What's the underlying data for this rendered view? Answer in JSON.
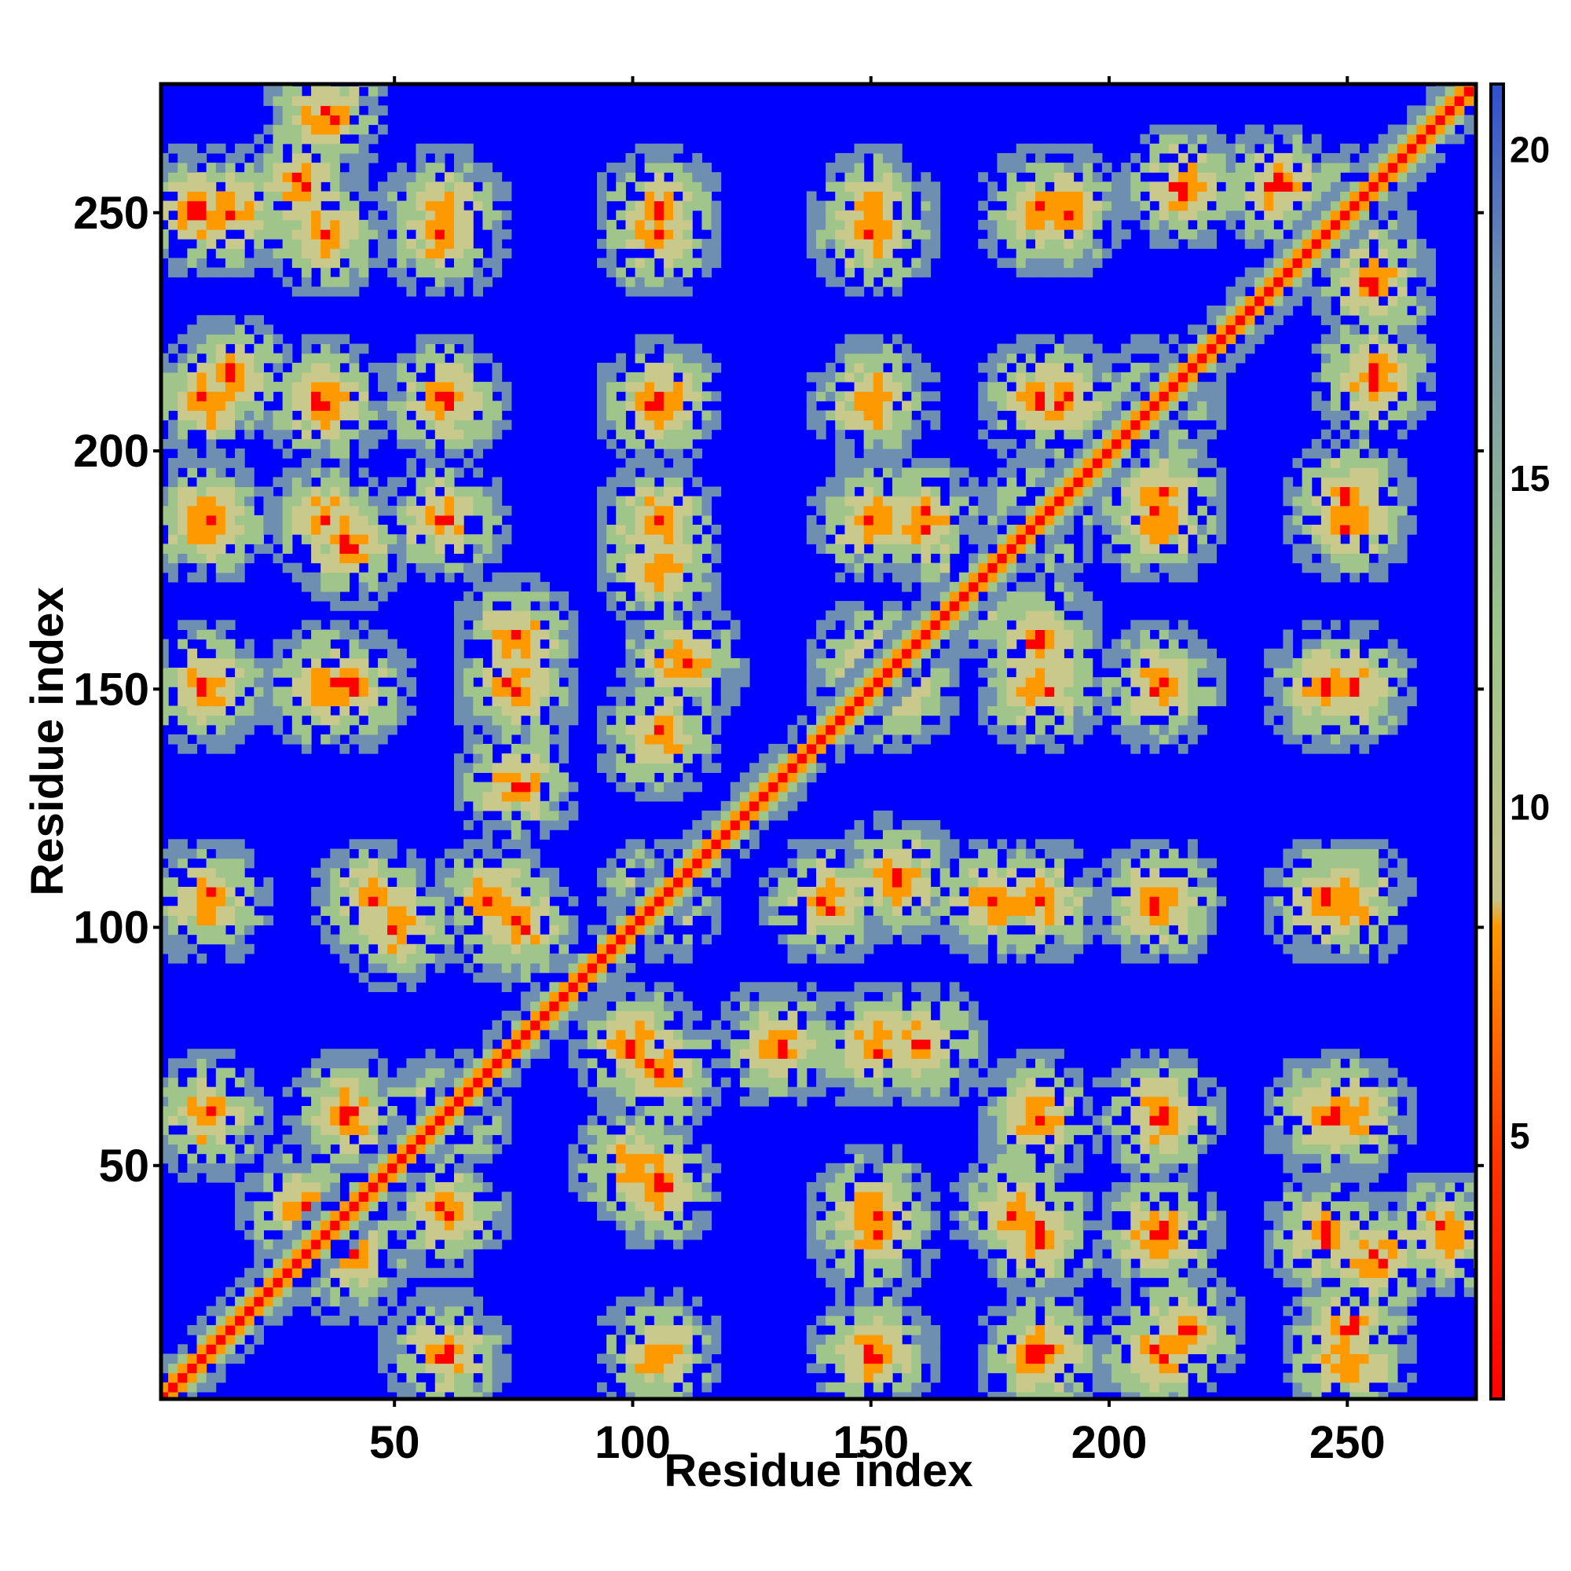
{
  "chart_data": {
    "type": "heatmap",
    "title": "",
    "xlabel": "Residue index",
    "ylabel": "Residue index",
    "xlim": [
      1,
      277
    ],
    "ylim": [
      1,
      277
    ],
    "x_ticks": [
      50,
      100,
      150,
      200,
      250
    ],
    "y_ticks": [
      50,
      100,
      150,
      200,
      250
    ],
    "colorbar": {
      "ticks": [
        5,
        10,
        15,
        20
      ],
      "range": [
        1,
        21
      ],
      "colors": {
        "close": "#ff0000",
        "mid": "#ff9900",
        "contact_edge": "#9fc58a",
        "far": "#6f8fb0",
        "background": "#0000ff"
      }
    },
    "diagonal_band": "low distances along main diagonal (self contacts)",
    "contact_blobs_residues": [
      [
        33,
        33
      ],
      [
        60,
        10
      ],
      [
        60,
        60
      ],
      [
        105,
        105
      ],
      [
        150,
        150
      ],
      [
        170,
        170
      ],
      [
        210,
        210
      ],
      [
        250,
        250
      ],
      [
        8,
        250
      ],
      [
        30,
        255
      ],
      [
        60,
        245
      ],
      [
        105,
        245
      ],
      [
        150,
        245
      ],
      [
        190,
        250
      ],
      [
        215,
        255
      ],
      [
        235,
        255
      ],
      [
        10,
        210
      ],
      [
        35,
        210
      ],
      [
        60,
        210
      ],
      [
        105,
        210
      ],
      [
        150,
        210
      ],
      [
        190,
        210
      ],
      [
        10,
        185
      ],
      [
        35,
        185
      ],
      [
        60,
        185
      ],
      [
        105,
        185
      ],
      [
        160,
        185
      ],
      [
        185,
        185
      ],
      [
        210,
        185
      ],
      [
        250,
        185
      ],
      [
        10,
        150
      ],
      [
        35,
        150
      ],
      [
        75,
        150
      ],
      [
        110,
        155
      ],
      [
        150,
        155
      ],
      [
        185,
        150
      ],
      [
        250,
        150
      ],
      [
        10,
        105
      ],
      [
        45,
        105
      ],
      [
        70,
        105
      ],
      [
        140,
        105
      ],
      [
        175,
        105
      ],
      [
        210,
        105
      ],
      [
        250,
        105
      ],
      [
        30,
        40
      ],
      [
        60,
        40
      ],
      [
        100,
        50
      ],
      [
        100,
        75
      ],
      [
        130,
        75
      ],
      [
        160,
        75
      ],
      [
        210,
        60
      ],
      [
        250,
        60
      ],
      [
        150,
        40
      ],
      [
        180,
        40
      ],
      [
        210,
        35
      ],
      [
        245,
        35
      ],
      [
        270,
        35
      ],
      [
        150,
        10
      ],
      [
        185,
        10
      ],
      [
        215,
        15
      ],
      [
        250,
        15
      ]
    ]
  }
}
